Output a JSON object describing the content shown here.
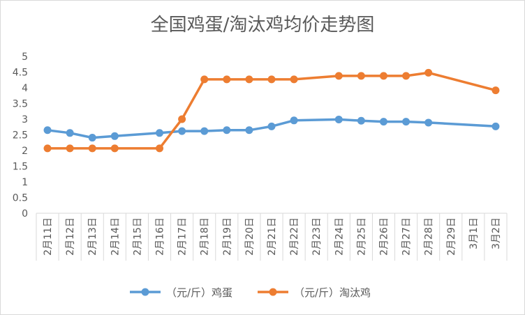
{
  "chart_data": {
    "type": "line",
    "title": "全国鸡蛋/淘汰鸡均价走势图",
    "xlabel": "",
    "ylabel": "",
    "categories": [
      "2月11日",
      "2月12日",
      "2月13日",
      "2月14日",
      "2月15日",
      "2月16日",
      "2月17日",
      "2月18日",
      "2月19日",
      "2月20日",
      "2月21日",
      "2月22日",
      "2月23日",
      "2月24日",
      "2月25日",
      "2月26日",
      "2月27日",
      "2月28日",
      "2月29日",
      "3月1日",
      "3月2日"
    ],
    "ylim": [
      0,
      5
    ],
    "yticks": [
      "0",
      "0.5",
      "1",
      "1.5",
      "2",
      "2.5",
      "3",
      "3.5",
      "4",
      "4.5",
      "5"
    ],
    "grid": false,
    "legend_position": "bottom",
    "series": [
      {
        "name": "（元/斤）鸡蛋",
        "color": "#5b9bd5",
        "values": [
          2.65,
          2.56,
          2.41,
          2.46,
          null,
          2.56,
          2.62,
          2.62,
          2.65,
          2.65,
          2.77,
          2.96,
          null,
          2.99,
          2.95,
          2.92,
          2.92,
          2.89,
          null,
          null,
          2.77
        ]
      },
      {
        "name": "（元/斤）淘汰鸡",
        "color": "#ed7d31",
        "values": [
          2.07,
          2.07,
          2.07,
          2.07,
          null,
          2.07,
          3.0,
          4.27,
          4.27,
          4.27,
          4.27,
          4.27,
          null,
          4.38,
          4.38,
          4.38,
          4.38,
          4.48,
          null,
          null,
          3.92
        ]
      }
    ]
  }
}
